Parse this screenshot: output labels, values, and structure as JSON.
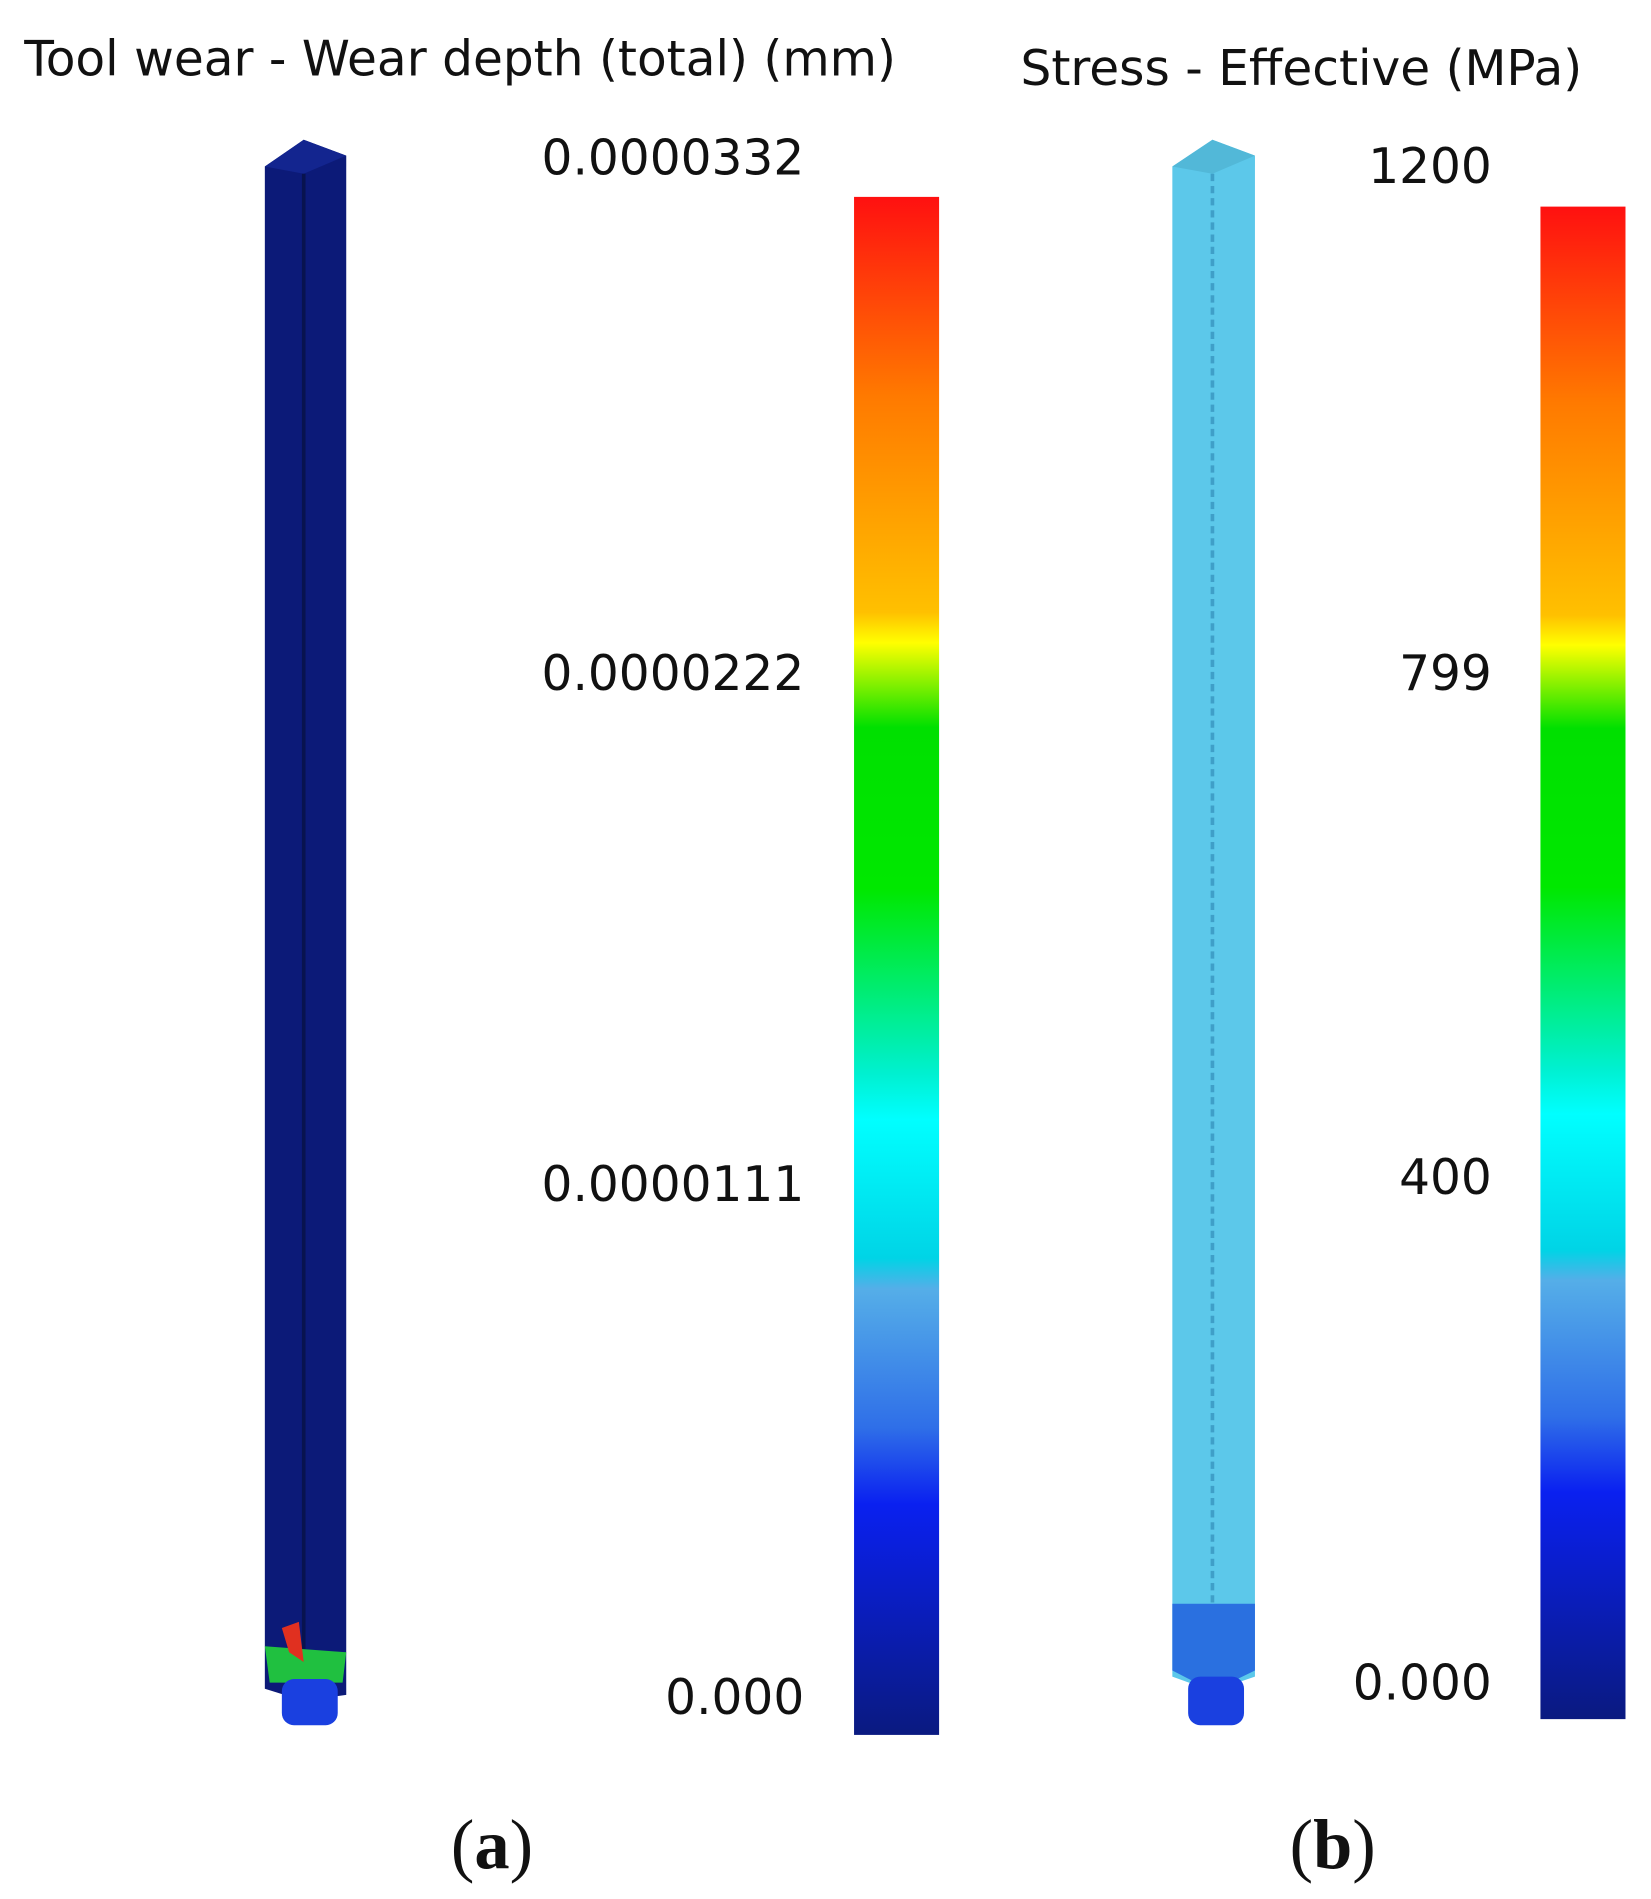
{
  "panels": [
    {
      "title": "Tool wear - Wear depth (total) (mm)",
      "scale_labels": [
        "0.0000332",
        "0.0000222",
        "0.0000111",
        "0.000"
      ],
      "caption": {
        "open": "(",
        "letter": "a",
        "close": ")"
      }
    },
    {
      "title": "Stress - Effective (MPa)",
      "scale_labels": [
        "1200",
        "799",
        "400",
        "0.000"
      ],
      "caption": {
        "open": "(",
        "letter": "b",
        "close": ")"
      }
    }
  ]
}
